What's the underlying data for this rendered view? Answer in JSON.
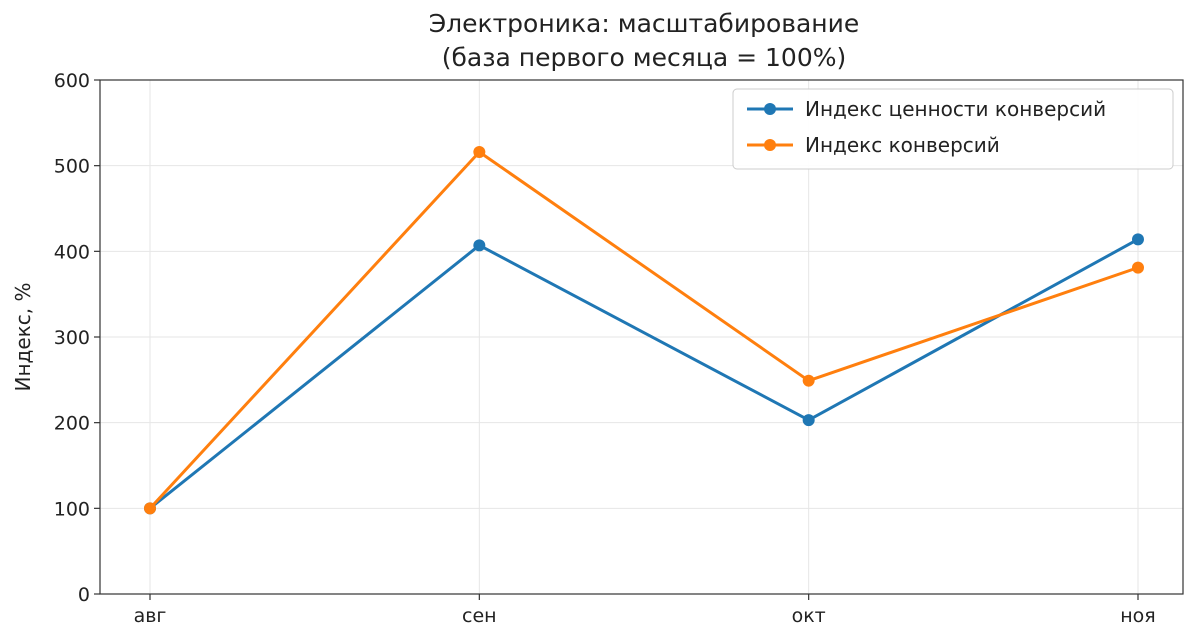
{
  "chart_data": {
    "type": "line",
    "title_line1": "Электроника: масштабирование",
    "title_line2": "(база первого месяца = 100%)",
    "xlabel": "",
    "ylabel": "Индекс, %",
    "categories": [
      "авг",
      "сен",
      "окт",
      "ноя"
    ],
    "ylim": [
      0,
      600
    ],
    "yticks": [
      0,
      100,
      200,
      300,
      400,
      500,
      600
    ],
    "grid": true,
    "legend_position": "top-right",
    "series": [
      {
        "name": "Индекс ценности конверсий",
        "color": "#1f77b4",
        "values": [
          100,
          407,
          203,
          414
        ]
      },
      {
        "name": "Индекс конверсий",
        "color": "#ff7f0e",
        "values": [
          100,
          516,
          249,
          381
        ]
      }
    ]
  }
}
